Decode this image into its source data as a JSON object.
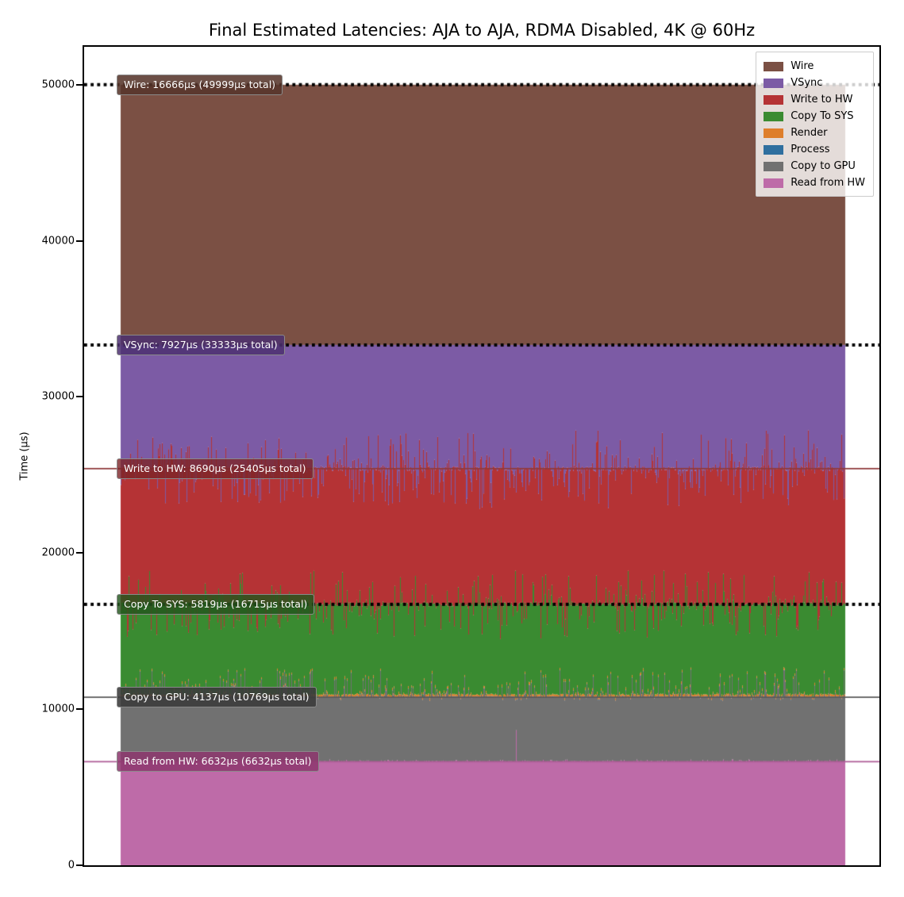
{
  "figure": {
    "title": "Final Estimated Latencies: AJA to AJA, RDMA Disabled, 4K @ 60Hz",
    "ylabel": "Time (µs)"
  },
  "chart_data": {
    "type": "area",
    "subtype": "stacked-area-timeseries",
    "title": "Final Estimated Latencies: AJA to AJA, RDMA Disabled, 4K @ 60Hz",
    "xlabel": "",
    "ylabel": "Time (µs)",
    "ylim": [
      0,
      52430
    ],
    "yticks": [
      0,
      10000,
      20000,
      30000,
      40000,
      50000
    ],
    "xticks": [],
    "grid": false,
    "legend_position": "upper right",
    "stack_order_bottom_to_top": [
      "Read from HW",
      "Copy to GPU",
      "Process",
      "Render",
      "Copy To SYS",
      "Write to HW",
      "VSync",
      "Wire"
    ],
    "series": [
      {
        "name": "Wire",
        "color": "#7B5044",
        "mean_us": 16666,
        "stack_top_us": 49999,
        "top_is_flat": true
      },
      {
        "name": "VSync",
        "color": "#7C5BA5",
        "mean_us": 7927,
        "stack_top_us": 33333,
        "top_is_flat": true
      },
      {
        "name": "Write to HW",
        "color": "#B53335",
        "mean_us": 8690,
        "stack_top_us": 25405,
        "noise_up_us": 2450,
        "noise_down_us": 2450
      },
      {
        "name": "Copy To SYS",
        "color": "#3A8B31",
        "mean_us": 5819,
        "stack_top_us": 16715,
        "noise_up_us": 2150,
        "noise_down_us": 2150
      },
      {
        "name": "Render",
        "color": "#DE7E2B"
      },
      {
        "name": "Process",
        "color": "#2F6F9F"
      },
      {
        "name": "Copy to GPU",
        "color": "#717171",
        "mean_us": 4137,
        "stack_top_us": 10769,
        "noise_up_us": 1750,
        "noise_down_us": 220
      },
      {
        "name": "Read from HW",
        "color": "#BE6BA8",
        "mean_us": 6632,
        "stack_top_us": 6632,
        "noise_up_us": 150,
        "noise_down_us": 0,
        "spike": {
          "x_frac": 0.545,
          "y_us": 8650
        }
      }
    ],
    "annotations": [
      {
        "series": "Wire",
        "text": "Wire: 16666µs (49999µs total)",
        "y_us": 49999,
        "line_style": "dotted",
        "line_color": "#000000",
        "box_color": "rgba(86,53,43,0.87)"
      },
      {
        "series": "VSync",
        "text": "VSync: 7927µs (33333µs total)",
        "y_us": 33333,
        "line_style": "dotted",
        "line_color": "#000000",
        "box_color": "rgba(76,48,112,0.85)"
      },
      {
        "series": "Write to HW",
        "text": "Write to HW: 8690µs (25405µs total)",
        "y_us": 25405,
        "line_style": "solid",
        "line_color": "#8F3A3C",
        "box_color": "rgba(124,36,40,0.80)"
      },
      {
        "series": "Copy To SYS",
        "text": "Copy To SYS: 5819µs (16715µs total)",
        "y_us": 16715,
        "line_style": "dotted",
        "line_color": "#000000",
        "box_color": "rgba(35,86,29,0.82)"
      },
      {
        "series": "Copy to GPU",
        "text": "Copy to GPU: 4137µs (10769µs total)",
        "y_us": 10769,
        "line_style": "solid",
        "line_color": "#5A5A5A",
        "box_color": "rgba(58,58,58,0.88)"
      },
      {
        "series": "Read from HW",
        "text": "Read from HW: 6632µs (6632µs total)",
        "y_us": 6632,
        "line_style": "solid",
        "line_color": "#AD5C96",
        "box_color": "rgba(141,55,110,0.86)"
      }
    ],
    "legend_entries": [
      "Wire",
      "VSync",
      "Write to HW",
      "Copy To SYS",
      "Render",
      "Process",
      "Copy to GPU",
      "Read from HW"
    ]
  }
}
